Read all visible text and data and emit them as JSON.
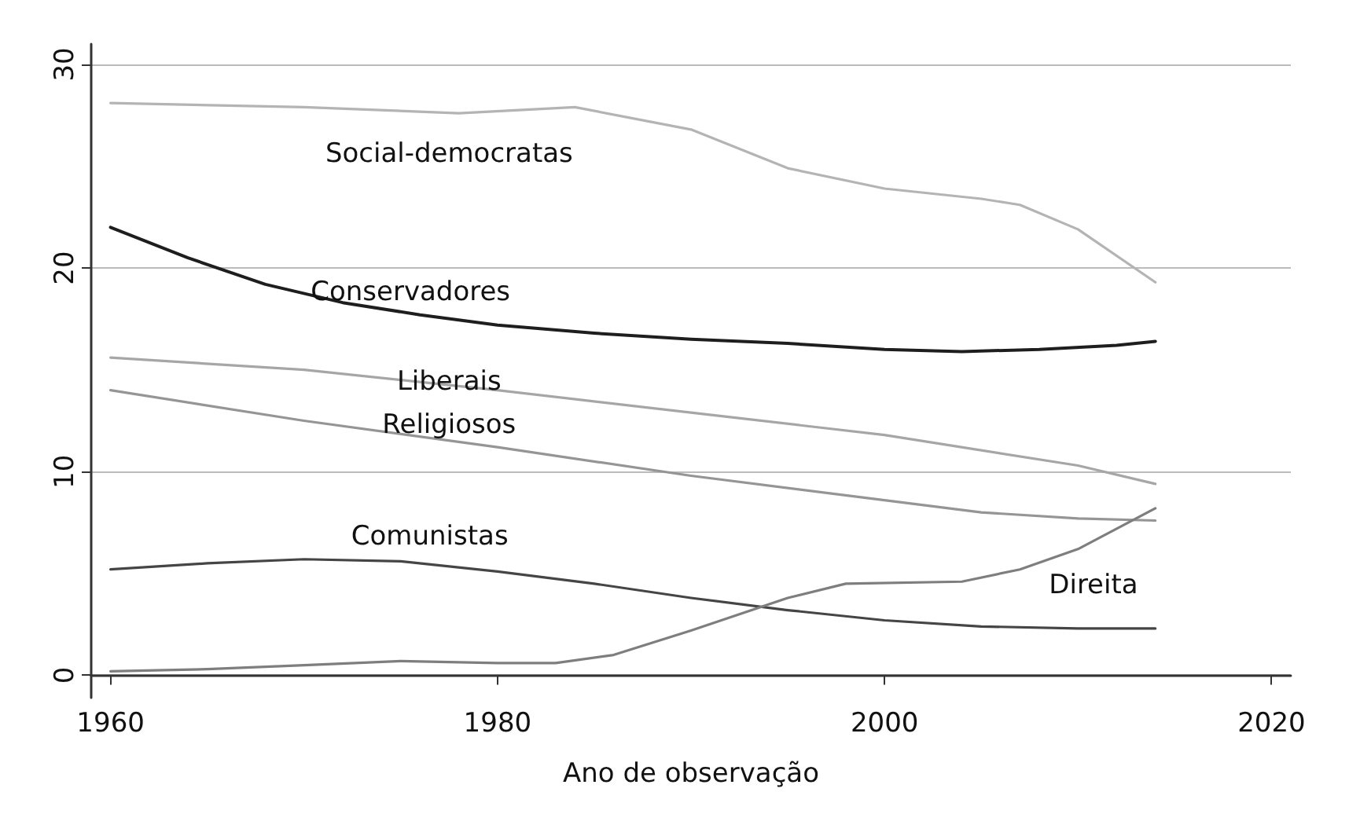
{
  "chart_data": {
    "type": "line",
    "xlabel": "Ano de observação",
    "xlim": [
      1959,
      2021
    ],
    "xticks": [
      1960,
      1980,
      2000,
      2020
    ],
    "ylim": [
      -1.1,
      31
    ],
    "yticks": [
      0,
      10,
      20,
      30
    ],
    "grid": "y",
    "legend": false,
    "marker": "none",
    "line_style": "solid",
    "series": [
      {
        "name": "Social-democratas",
        "color": "#b4b4b4",
        "x": [
          1960,
          1970,
          1978,
          1984,
          1990,
          1995,
          2000,
          2005,
          2007,
          2010,
          2014
        ],
        "values": [
          28.1,
          27.9,
          27.6,
          27.9,
          26.8,
          24.9,
          23.9,
          23.4,
          23.1,
          21.9,
          19.3
        ]
      },
      {
        "name": "Conservadores",
        "color": "#1e1e1e",
        "x": [
          1960,
          1964,
          1968,
          1972,
          1976,
          1980,
          1985,
          1990,
          1995,
          2000,
          2004,
          2008,
          2012,
          2014
        ],
        "values": [
          22.0,
          20.5,
          19.2,
          18.3,
          17.7,
          17.2,
          16.8,
          16.5,
          16.3,
          16.0,
          15.9,
          16.0,
          16.2,
          16.4
        ]
      },
      {
        "name": "Liberais",
        "color": "#a6a6a6",
        "x": [
          1960,
          1970,
          1980,
          1990,
          2000,
          2010,
          2014
        ],
        "values": [
          15.6,
          15.0,
          14.0,
          12.9,
          11.8,
          10.3,
          9.4
        ]
      },
      {
        "name": "Religiosos",
        "color": "#959595",
        "x": [
          1960,
          1970,
          1980,
          1990,
          2000,
          2005,
          2010,
          2014
        ],
        "values": [
          14.0,
          12.5,
          11.2,
          9.8,
          8.6,
          8.0,
          7.7,
          7.6
        ]
      },
      {
        "name": "Comunistas",
        "color": "#454545",
        "x": [
          1960,
          1965,
          1970,
          1975,
          1980,
          1985,
          1990,
          1995,
          2000,
          2005,
          2010,
          2014
        ],
        "values": [
          5.2,
          5.5,
          5.7,
          5.6,
          5.1,
          4.5,
          3.8,
          3.2,
          2.7,
          2.4,
          2.3,
          2.3
        ]
      },
      {
        "name": "Direita",
        "color": "#7e7e7e",
        "x": [
          1960,
          1965,
          1970,
          1975,
          1980,
          1983,
          1986,
          1990,
          1995,
          1998,
          2004,
          2007,
          2010,
          2014
        ],
        "values": [
          0.2,
          0.3,
          0.5,
          0.7,
          0.6,
          0.6,
          1.0,
          2.2,
          3.8,
          4.5,
          4.6,
          5.2,
          6.2,
          8.2
        ]
      }
    ]
  }
}
